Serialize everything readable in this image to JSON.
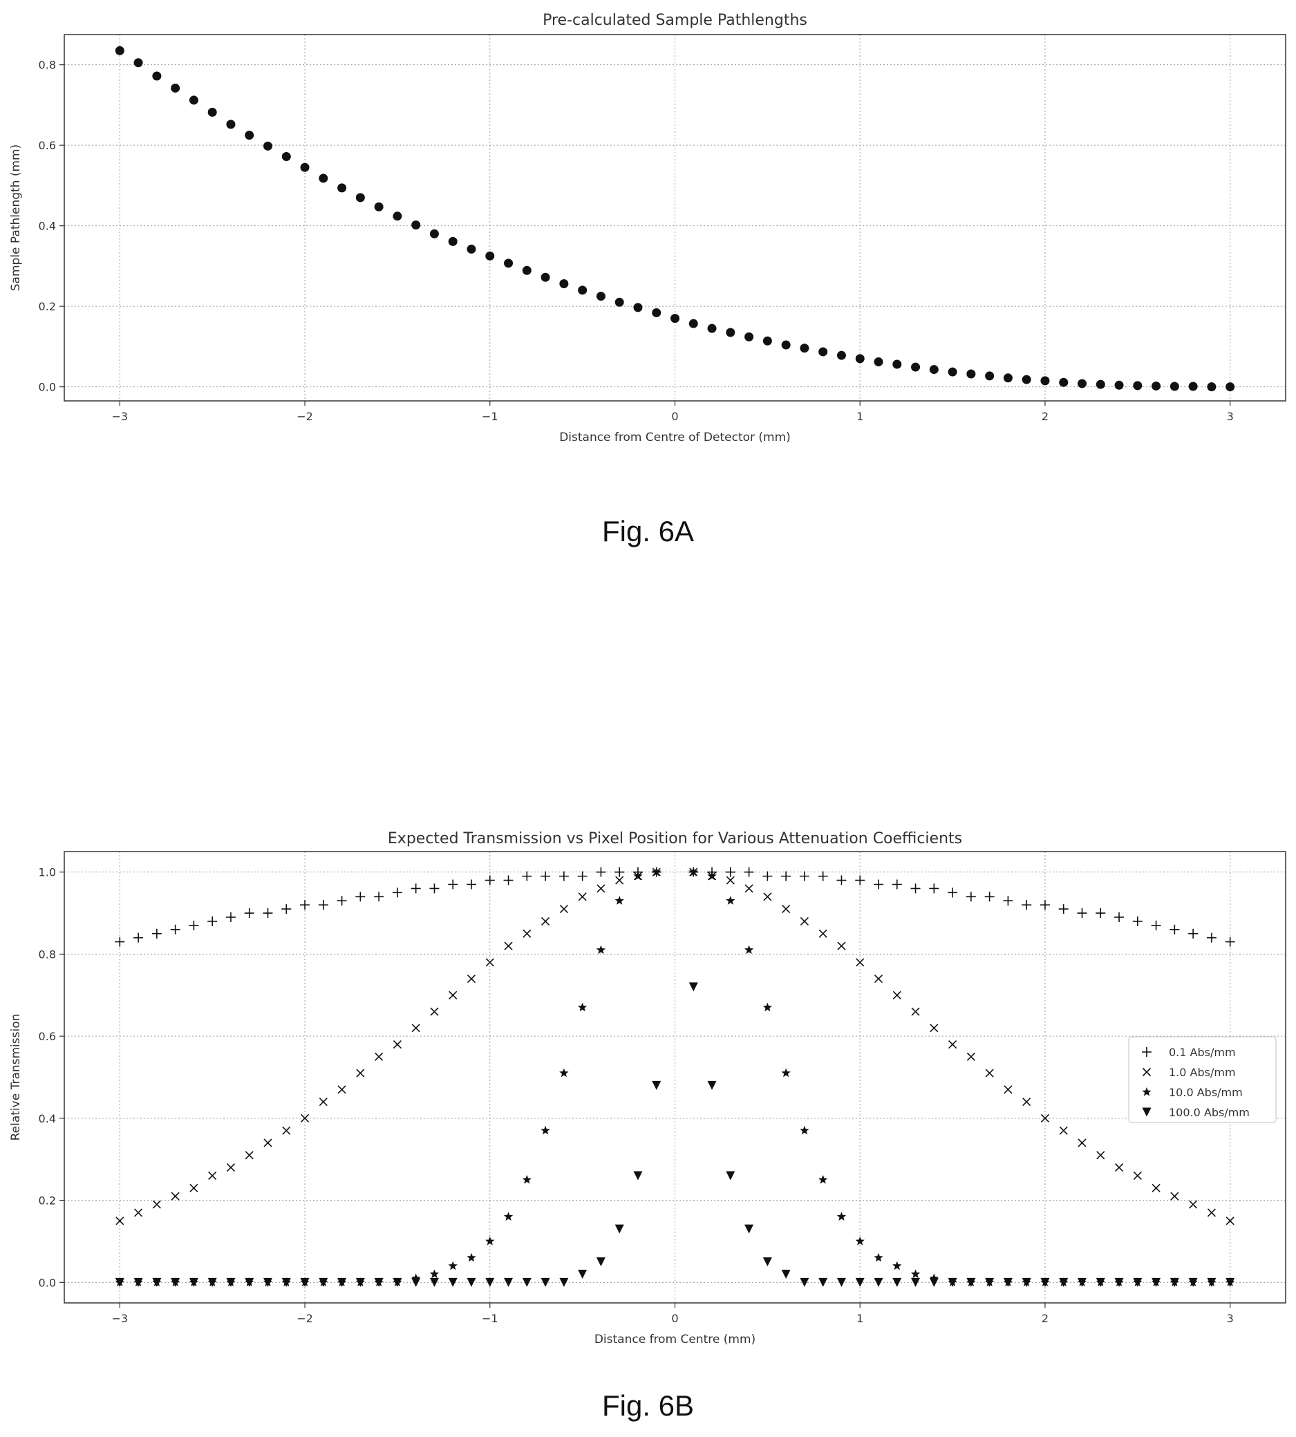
{
  "figures": [
    {
      "caption": "Fig. 6A",
      "chart_data": {
        "type": "scatter",
        "title": "Pre-calculated Sample Pathlengths",
        "xlabel": "Distance from Centre of Detector (mm)",
        "ylabel": "Sample Pathlength (mm)",
        "xlim": [
          -3.3,
          3.3
        ],
        "ylim": [
          -0.035,
          0.875
        ],
        "x_ticks": [
          -3,
          -2,
          -1,
          0,
          1,
          2,
          3
        ],
        "x_tick_labels": [
          "−3",
          "−2",
          "−1",
          "0",
          "1",
          "2",
          "3"
        ],
        "y_ticks": [
          0.0,
          0.2,
          0.4,
          0.6,
          0.8
        ],
        "y_tick_labels": [
          "0.0",
          "0.2",
          "0.4",
          "0.6",
          "0.8"
        ],
        "grid": true,
        "series": [
          {
            "marker": "circle",
            "color": "#111111",
            "x": [
              -3,
              -2.9,
              -2.8,
              -2.7,
              -2.6,
              -2.5,
              -2.4,
              -2.3,
              -2.2,
              -2.1,
              -2,
              -1.9,
              -1.8,
              -1.7,
              -1.6,
              -1.5,
              -1.4,
              -1.3,
              -1.2,
              -1.1,
              -1,
              -0.9,
              -0.8,
              -0.7,
              -0.6,
              -0.5,
              -0.4,
              -0.3,
              -0.2,
              -0.1,
              0,
              0.1,
              0.2,
              0.3,
              0.4,
              0.5,
              0.6,
              0.7,
              0.8,
              0.9,
              1,
              1.1,
              1.2,
              1.3,
              1.4,
              1.5,
              1.6,
              1.7,
              1.8,
              1.9,
              2,
              2.1,
              2.2,
              2.3,
              2.4,
              2.5,
              2.6,
              2.7,
              2.8,
              2.9,
              3
            ],
            "y": [
              0.835,
              0.805,
              0.772,
              0.742,
              0.712,
              0.682,
              0.652,
              0.625,
              0.598,
              0.572,
              0.545,
              0.518,
              0.494,
              0.47,
              0.447,
              0.424,
              0.402,
              0.38,
              0.361,
              0.342,
              0.325,
              0.307,
              0.289,
              0.272,
              0.256,
              0.24,
              0.225,
              0.21,
              0.197,
              0.184,
              0.17,
              0.157,
              0.145,
              0.135,
              0.124,
              0.114,
              0.104,
              0.096,
              0.087,
              0.078,
              0.07,
              0.062,
              0.056,
              0.049,
              0.043,
              0.037,
              0.032,
              0.027,
              0.022,
              0.018,
              0.015,
              0.011,
              0.008,
              0.006,
              0.004,
              0.003,
              0.002,
              0.001,
              0.001,
              0.0,
              0.0
            ]
          }
        ]
      }
    },
    {
      "caption": "Fig. 6B",
      "chart_data": {
        "type": "scatter",
        "title": "Expected Transmission vs Pixel Position for Various Attenuation Coefficients",
        "xlabel": "Distance from Centre (mm)",
        "ylabel": "Relative Transmission",
        "xlim": [
          -3.3,
          3.3
        ],
        "ylim": [
          -0.05,
          1.05
        ],
        "x_ticks": [
          -3,
          -2,
          -1,
          0,
          1,
          2,
          3
        ],
        "x_tick_labels": [
          "−3",
          "−2",
          "−1",
          "0",
          "1",
          "2",
          "3"
        ],
        "y_ticks": [
          0.0,
          0.2,
          0.4,
          0.6,
          0.8,
          1.0
        ],
        "y_tick_labels": [
          "0.0",
          "0.2",
          "0.4",
          "0.6",
          "0.8",
          "1.0"
        ],
        "grid": true,
        "legend": "center-right",
        "series": [
          {
            "name": "0.1 Abs/mm",
            "marker": "plus",
            "color": "#111111",
            "x": [
              -3.0,
              -2.9,
              -2.8,
              -2.7,
              -2.6,
              -2.5,
              -2.4,
              -2.3,
              -2.2,
              -2.1,
              -2.0,
              -1.9,
              -1.8,
              -1.7,
              -1.6,
              -1.5,
              -1.4,
              -1.3,
              -1.2,
              -1.1,
              -1.0,
              -0.9,
              -0.8,
              -0.7,
              -0.6,
              -0.5,
              -0.4,
              -0.3,
              -0.2,
              -0.1,
              0.1,
              0.2,
              0.3,
              0.4,
              0.5,
              0.6,
              0.7,
              0.8,
              0.9,
              1.0,
              1.1,
              1.2,
              1.3,
              1.4,
              1.5,
              1.6,
              1.7,
              1.8,
              1.9,
              2.0,
              2.1,
              2.2,
              2.3,
              2.4,
              2.5,
              2.6,
              2.7,
              2.8,
              2.9,
              3.0
            ],
            "y": [
              0.83,
              0.84,
              0.85,
              0.86,
              0.87,
              0.88,
              0.89,
              0.9,
              0.9,
              0.91,
              0.92,
              0.92,
              0.93,
              0.94,
              0.94,
              0.95,
              0.96,
              0.96,
              0.97,
              0.97,
              0.98,
              0.98,
              0.99,
              0.99,
              0.99,
              0.99,
              1.0,
              1.0,
              1.0,
              1.0,
              1.0,
              1.0,
              1.0,
              1.0,
              0.99,
              0.99,
              0.99,
              0.99,
              0.98,
              0.98,
              0.97,
              0.97,
              0.96,
              0.96,
              0.95,
              0.94,
              0.94,
              0.93,
              0.92,
              0.92,
              0.91,
              0.9,
              0.9,
              0.89,
              0.88,
              0.87,
              0.86,
              0.85,
              0.84,
              0.83
            ]
          },
          {
            "name": "1.0 Abs/mm",
            "marker": "x",
            "color": "#111111",
            "x": [
              -3.0,
              -2.9,
              -2.8,
              -2.7,
              -2.6,
              -2.5,
              -2.4,
              -2.3,
              -2.2,
              -2.1,
              -2.0,
              -1.9,
              -1.8,
              -1.7,
              -1.6,
              -1.5,
              -1.4,
              -1.3,
              -1.2,
              -1.1,
              -1.0,
              -0.9,
              -0.8,
              -0.7,
              -0.6,
              -0.5,
              -0.4,
              -0.3,
              -0.2,
              -0.1,
              0.1,
              0.2,
              0.3,
              0.4,
              0.5,
              0.6,
              0.7,
              0.8,
              0.9,
              1.0,
              1.1,
              1.2,
              1.3,
              1.4,
              1.5,
              1.6,
              1.7,
              1.8,
              1.9,
              2.0,
              2.1,
              2.2,
              2.3,
              2.4,
              2.5,
              2.6,
              2.7,
              2.8,
              2.9,
              3.0
            ],
            "y": [
              0.15,
              0.17,
              0.19,
              0.21,
              0.23,
              0.26,
              0.28,
              0.31,
              0.34,
              0.37,
              0.4,
              0.44,
              0.47,
              0.51,
              0.55,
              0.58,
              0.62,
              0.66,
              0.7,
              0.74,
              0.78,
              0.82,
              0.85,
              0.88,
              0.91,
              0.94,
              0.96,
              0.98,
              0.99,
              1.0,
              1.0,
              0.99,
              0.98,
              0.96,
              0.94,
              0.91,
              0.88,
              0.85,
              0.82,
              0.78,
              0.74,
              0.7,
              0.66,
              0.62,
              0.58,
              0.55,
              0.51,
              0.47,
              0.44,
              0.4,
              0.37,
              0.34,
              0.31,
              0.28,
              0.26,
              0.23,
              0.21,
              0.19,
              0.17,
              0.15
            ]
          },
          {
            "name": "10.0 Abs/mm",
            "marker": "star",
            "color": "#111111",
            "x": [
              -3.0,
              -2.9,
              -2.8,
              -2.7,
              -2.6,
              -2.5,
              -2.4,
              -2.3,
              -2.2,
              -2.1,
              -2.0,
              -1.9,
              -1.8,
              -1.7,
              -1.6,
              -1.5,
              -1.4,
              -1.3,
              -1.2,
              -1.1,
              -1.0,
              -0.9,
              -0.8,
              -0.7,
              -0.6,
              -0.5,
              -0.4,
              -0.3,
              -0.2,
              -0.1,
              0.1,
              0.2,
              0.3,
              0.4,
              0.5,
              0.6,
              0.7,
              0.8,
              0.9,
              1.0,
              1.1,
              1.2,
              1.3,
              1.4,
              1.5,
              1.6,
              1.7,
              1.8,
              1.9,
              2.0,
              2.1,
              2.2,
              2.3,
              2.4,
              2.5,
              2.6,
              2.7,
              2.8,
              2.9,
              3.0
            ],
            "y": [
              0.0,
              0.0,
              0.0,
              0.0,
              0.0,
              0.0,
              0.0,
              0.0,
              0.0,
              0.0,
              0.0,
              0.0,
              0.0,
              0.0,
              0.0,
              0.0,
              0.01,
              0.02,
              0.04,
              0.06,
              0.1,
              0.16,
              0.25,
              0.37,
              0.51,
              0.67,
              0.81,
              0.93,
              0.99,
              1.0,
              1.0,
              0.99,
              0.93,
              0.81,
              0.67,
              0.51,
              0.37,
              0.25,
              0.16,
              0.1,
              0.06,
              0.04,
              0.02,
              0.01,
              0.0,
              0.0,
              0.0,
              0.0,
              0.0,
              0.0,
              0.0,
              0.0,
              0.0,
              0.0,
              0.0,
              0.0,
              0.0,
              0.0,
              0.0,
              0.0
            ]
          },
          {
            "name": "100.0 Abs/mm",
            "marker": "triangle_down",
            "color": "#111111",
            "x": [
              -3.0,
              -2.9,
              -2.8,
              -2.7,
              -2.6,
              -2.5,
              -2.4,
              -2.3,
              -2.2,
              -2.1,
              -2.0,
              -1.9,
              -1.8,
              -1.7,
              -1.6,
              -1.5,
              -1.4,
              -1.3,
              -1.2,
              -1.1,
              -1.0,
              -0.9,
              -0.8,
              -0.7,
              -0.6,
              -0.5,
              -0.4,
              -0.3,
              -0.2,
              -0.1,
              0.1,
              0.2,
              0.3,
              0.4,
              0.5,
              0.6,
              0.7,
              0.8,
              0.9,
              1.0,
              1.1,
              1.2,
              1.3,
              1.4,
              1.5,
              1.6,
              1.7,
              1.8,
              1.9,
              2.0,
              2.1,
              2.2,
              2.3,
              2.4,
              2.5,
              2.6,
              2.7,
              2.8,
              2.9,
              3.0
            ],
            "y": [
              0.0,
              0.0,
              0.0,
              0.0,
              0.0,
              0.0,
              0.0,
              0.0,
              0.0,
              0.0,
              0.0,
              0.0,
              0.0,
              0.0,
              0.0,
              0.0,
              0.0,
              0.0,
              0.0,
              0.0,
              0.0,
              0.0,
              0.0,
              0.0,
              0.0,
              0.02,
              0.05,
              0.13,
              0.26,
              0.48,
              0.72,
              0.48,
              0.26,
              0.13,
              0.05,
              0.02,
              0.0,
              0.0,
              0.0,
              0.0,
              0.0,
              0.0,
              0.0,
              0.0,
              0.0,
              0.0,
              0.0,
              0.0,
              0.0,
              0.0,
              0.0,
              0.0,
              0.0,
              0.0,
              0.0,
              0.0,
              0.0,
              0.0,
              0.0,
              0.0
            ]
          }
        ]
      }
    }
  ]
}
